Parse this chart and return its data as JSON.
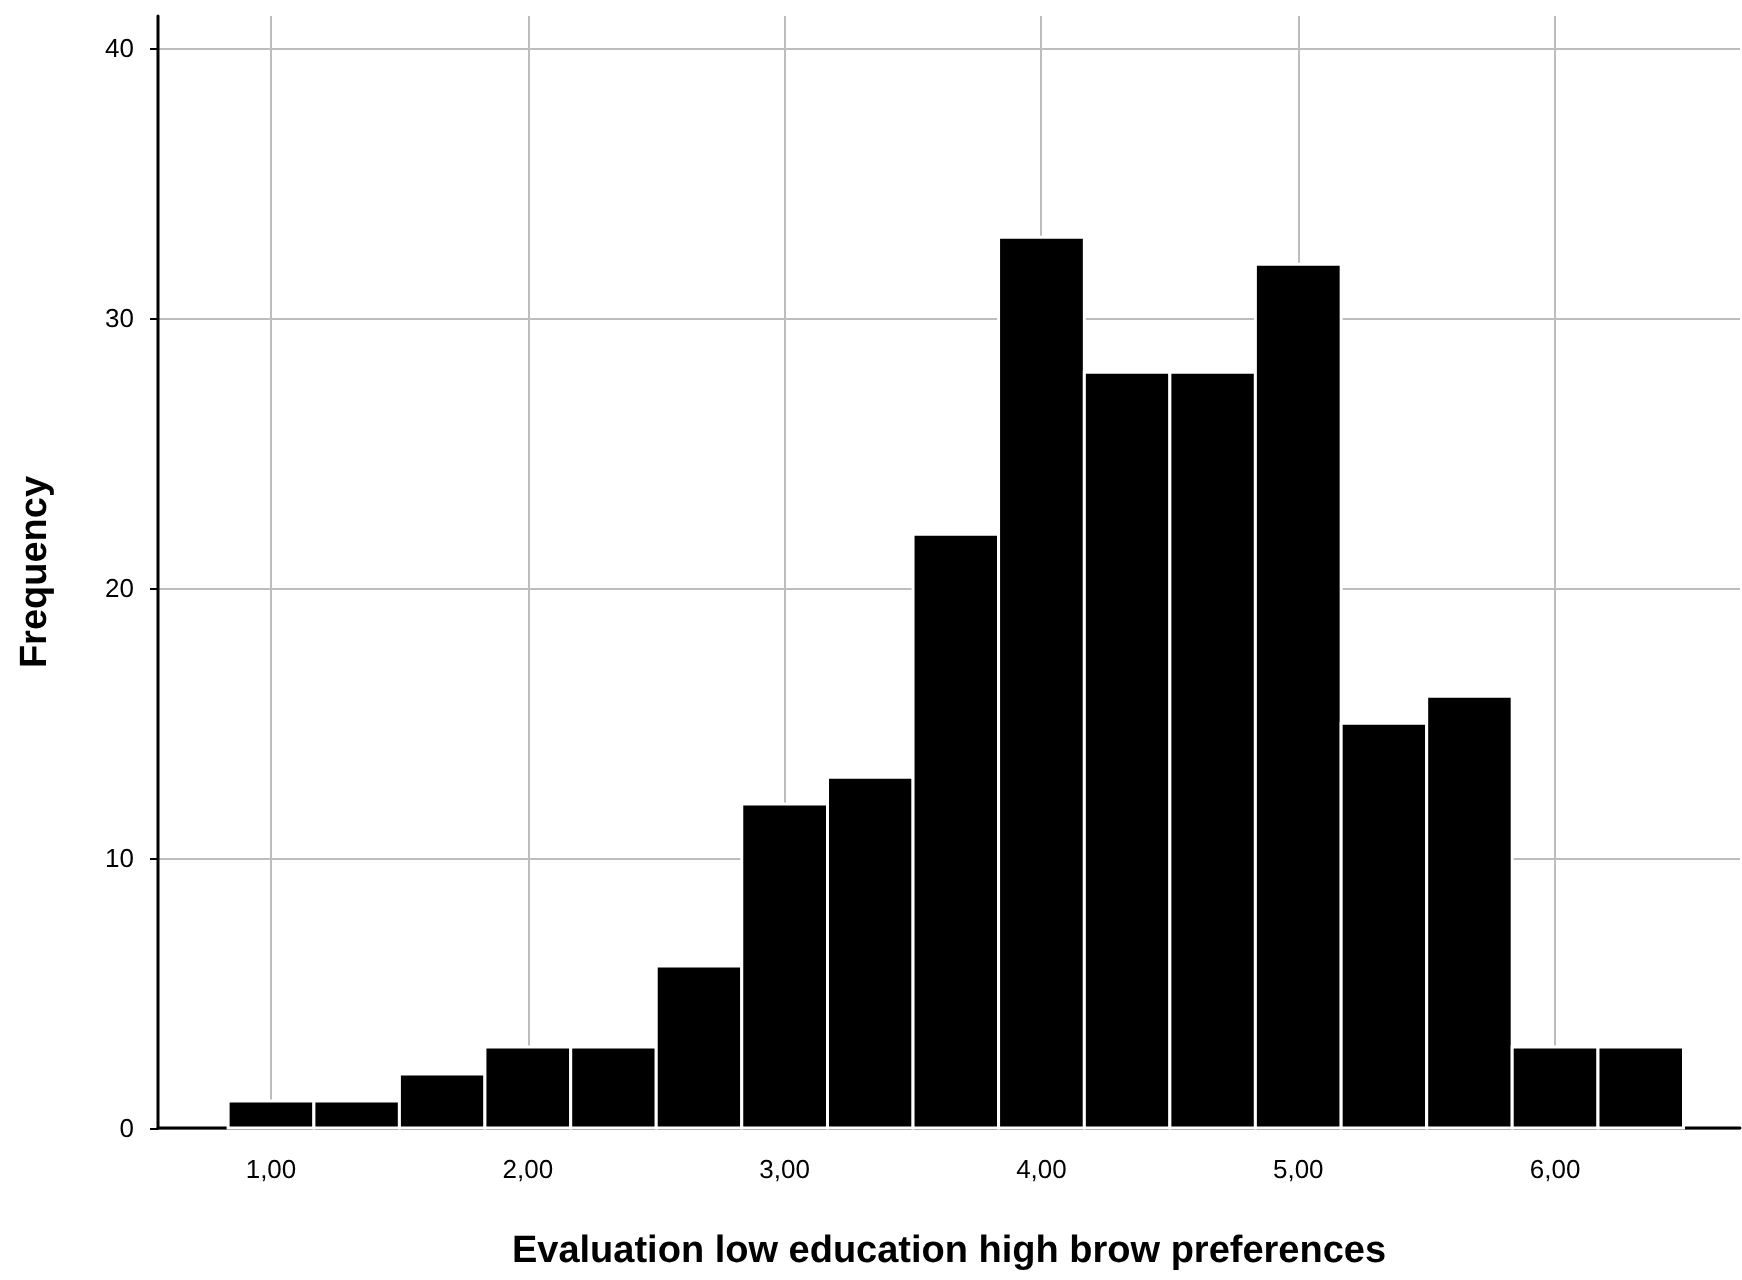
{
  "chart_data": {
    "type": "histogram",
    "xlabel": "Evaluation low education high brow preferences",
    "ylabel": "Frequency",
    "bins": [
      0.833,
      1.167,
      1.5,
      1.833,
      2.167,
      2.5,
      2.833,
      3.167,
      3.5,
      3.833,
      4.167,
      4.5,
      4.833,
      5.167,
      5.5,
      5.833,
      6.167,
      6.5
    ],
    "values": [
      1,
      1,
      2,
      3,
      3,
      6,
      12,
      13,
      22,
      33,
      28,
      28,
      32,
      15,
      16,
      3,
      3
    ],
    "color": "#000000",
    "xlim": [
      0.56,
      6.72
    ],
    "ylim": [
      0,
      41.2
    ],
    "xticks": [
      {
        "value": 1,
        "label": "1,00"
      },
      {
        "value": 2,
        "label": "2,00"
      },
      {
        "value": 3,
        "label": "3,00"
      },
      {
        "value": 4,
        "label": "4,00"
      },
      {
        "value": 5,
        "label": "5,00"
      },
      {
        "value": 6,
        "label": "6,00"
      }
    ],
    "yticks": [
      0,
      10,
      20,
      30,
      40
    ],
    "grid": true
  }
}
